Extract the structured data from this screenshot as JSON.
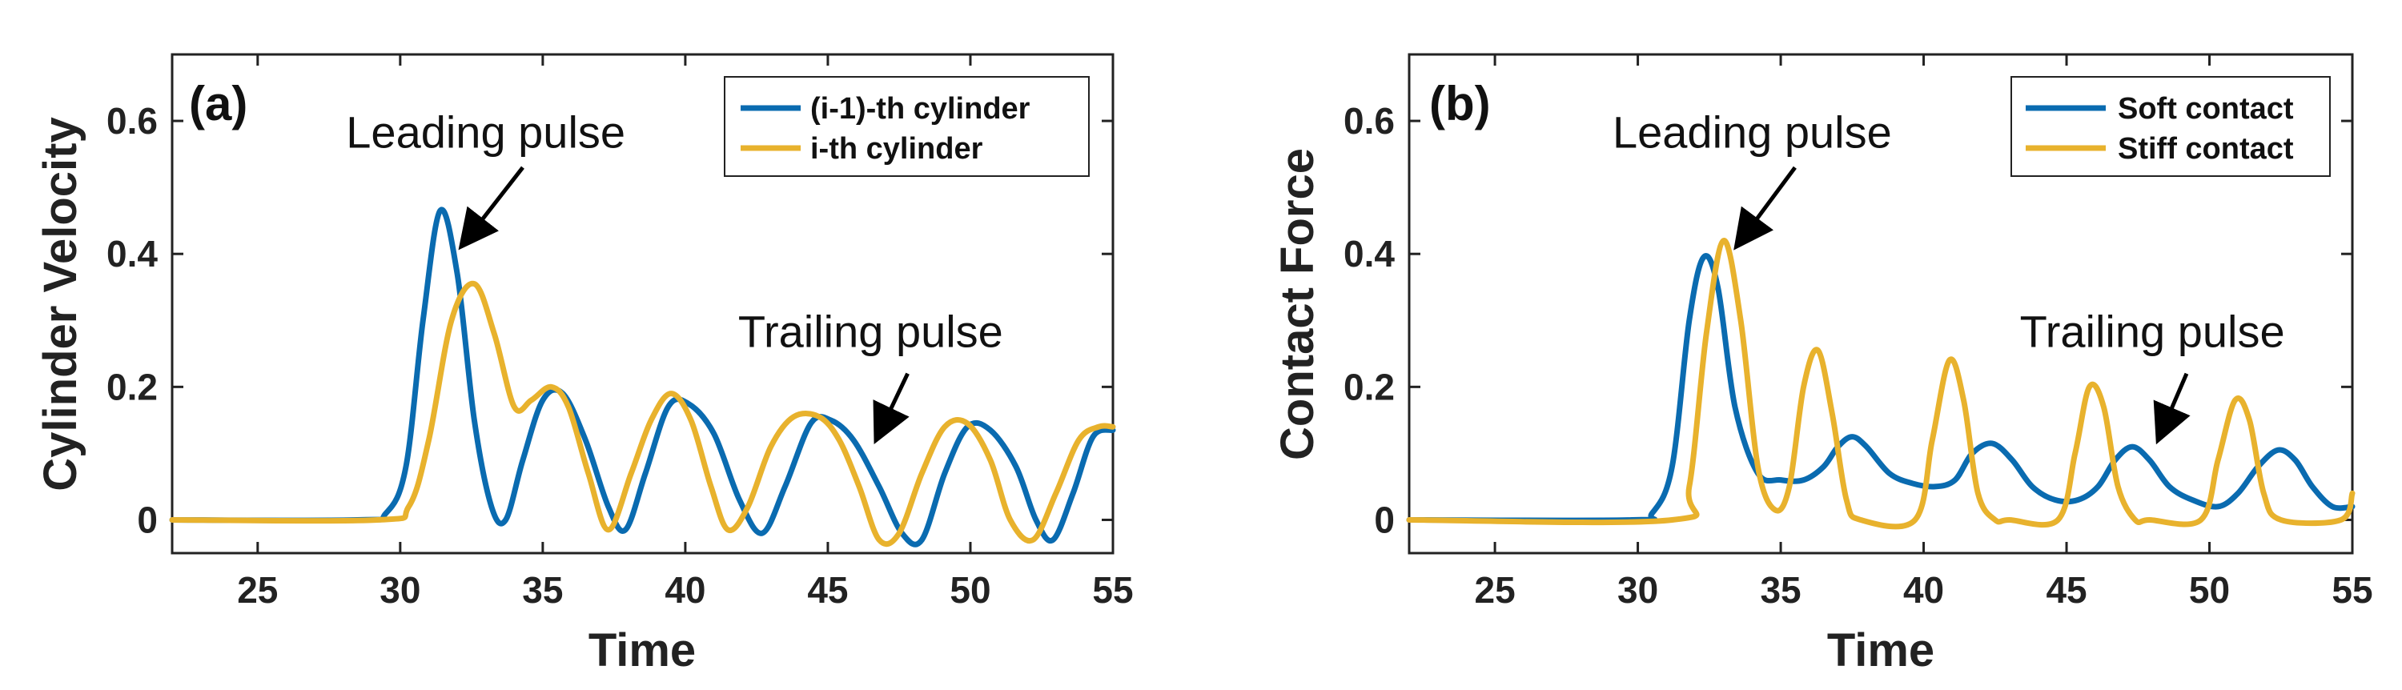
{
  "colors": {
    "blue": "#0a6bb0",
    "gold": "#e8b22d",
    "axis": "#222222"
  },
  "chart_data": [
    {
      "type": "line",
      "panel_label": "(a)",
      "xlabel": "Time",
      "ylabel": "Cylinder Velocity",
      "xlim": [
        22,
        55
      ],
      "ylim": [
        -0.05,
        0.7
      ],
      "xticks": [
        25,
        30,
        35,
        40,
        45,
        50,
        55
      ],
      "yticks": [
        0,
        0.2,
        0.4,
        0.6
      ],
      "ytick_labels": [
        "0",
        "0.2",
        "0.4",
        "0.6"
      ],
      "legend": "top-right",
      "series": [
        {
          "name": "(i-1)-th cylinder",
          "color": "#0a6bb0",
          "x": [
            22,
            28.5,
            29.5,
            30.2,
            30.8,
            31.4,
            32.0,
            32.6,
            33.2,
            33.7,
            34.3,
            35.0,
            35.7,
            36.5,
            37.3,
            37.9,
            38.6,
            39.4,
            40.1,
            41.0,
            41.9,
            42.7,
            43.5,
            44.4,
            45.1,
            45.9,
            46.8,
            47.6,
            48.3,
            49.1,
            49.9,
            50.7,
            51.6,
            52.3,
            52.9,
            53.6,
            54.3,
            55
          ],
          "y": [
            0,
            0,
            0.01,
            0.08,
            0.3,
            0.465,
            0.37,
            0.15,
            0.02,
            0.0,
            0.09,
            0.18,
            0.19,
            0.12,
            0.02,
            -0.015,
            0.07,
            0.17,
            0.175,
            0.13,
            0.03,
            -0.02,
            0.05,
            0.145,
            0.15,
            0.12,
            0.05,
            -0.02,
            -0.03,
            0.07,
            0.14,
            0.135,
            0.08,
            0.0,
            -0.03,
            0.04,
            0.125,
            0.135
          ]
        },
        {
          "name": "i-th cylinder",
          "color": "#e8b22d",
          "x": [
            22,
            29.2,
            30.3,
            31.0,
            31.8,
            32.6,
            33.3,
            34.0,
            34.6,
            35.3,
            35.9,
            36.6,
            37.3,
            38.1,
            38.8,
            39.5,
            40.2,
            40.9,
            41.5,
            42.2,
            43.0,
            43.8,
            44.7,
            45.4,
            46.1,
            46.8,
            47.5,
            48.3,
            49.1,
            49.9,
            50.7,
            51.4,
            52.2,
            53.0,
            53.8,
            54.5,
            55
          ],
          "y": [
            0,
            0,
            0.02,
            0.12,
            0.3,
            0.355,
            0.28,
            0.17,
            0.18,
            0.2,
            0.17,
            0.07,
            -0.015,
            0.07,
            0.15,
            0.19,
            0.15,
            0.05,
            -0.015,
            0.02,
            0.11,
            0.155,
            0.155,
            0.12,
            0.05,
            -0.03,
            -0.02,
            0.07,
            0.14,
            0.145,
            0.09,
            0.0,
            -0.03,
            0.04,
            0.12,
            0.14,
            0.14
          ]
        }
      ],
      "annotations": [
        {
          "text": "Leading pulse",
          "x": 33.0,
          "y": 0.56,
          "arrow_from": [
            34.3,
            0.53
          ],
          "arrow_to": [
            32.3,
            0.42
          ]
        },
        {
          "text": "Trailing pulse",
          "x": 46.5,
          "y": 0.26,
          "arrow_from": [
            47.8,
            0.22
          ],
          "arrow_to": [
            46.8,
            0.13
          ]
        }
      ]
    },
    {
      "type": "line",
      "panel_label": "(b)",
      "xlabel": "Time",
      "ylabel": "Contact Force",
      "xlim": [
        22,
        55
      ],
      "ylim": [
        -0.05,
        0.7
      ],
      "xticks": [
        25,
        30,
        35,
        40,
        45,
        50,
        55
      ],
      "yticks": [
        0,
        0.2,
        0.4,
        0.6
      ],
      "ytick_labels": [
        "0",
        "0.2",
        "0.4",
        "0.6"
      ],
      "legend": "top-right",
      "series": [
        {
          "name": "Soft contact",
          "color": "#0a6bb0",
          "x": [
            22,
            29.8,
            30.5,
            31.2,
            31.8,
            32.3,
            32.8,
            33.4,
            34.2,
            35.0,
            35.8,
            36.5,
            37.0,
            37.5,
            38.0,
            38.8,
            39.6,
            40.4,
            41.1,
            41.7,
            42.4,
            43.1,
            43.8,
            44.6,
            45.4,
            46.1,
            46.7,
            47.3,
            47.9,
            48.6,
            49.4,
            50.3,
            51.0,
            51.7,
            52.4,
            53.0,
            53.6,
            54.3,
            55
          ],
          "y": [
            0,
            0,
            0.01,
            0.08,
            0.3,
            0.395,
            0.35,
            0.17,
            0.07,
            0.06,
            0.06,
            0.08,
            0.11,
            0.125,
            0.11,
            0.07,
            0.055,
            0.05,
            0.06,
            0.1,
            0.115,
            0.09,
            0.05,
            0.03,
            0.03,
            0.05,
            0.09,
            0.11,
            0.09,
            0.05,
            0.03,
            0.02,
            0.04,
            0.08,
            0.105,
            0.09,
            0.05,
            0.02,
            0.02
          ]
        },
        {
          "name": "Stiff contact",
          "color": "#e8b22d",
          "x": [
            22,
            31.2,
            31.8,
            32.4,
            33.0,
            33.6,
            34.2,
            34.8,
            35.3,
            35.8,
            36.3,
            36.8,
            37.3,
            37.8,
            39.7,
            40.3,
            40.9,
            41.4,
            41.9,
            42.5,
            43.0,
            44.7,
            45.3,
            45.8,
            46.3,
            46.8,
            47.4,
            47.9,
            49.7,
            50.3,
            50.9,
            51.4,
            51.9,
            52.5,
            54.6,
            55
          ],
          "y": [
            0,
            0,
            0.05,
            0.28,
            0.42,
            0.3,
            0.08,
            0.015,
            0.05,
            0.2,
            0.255,
            0.16,
            0.03,
            0.0,
            0.0,
            0.12,
            0.24,
            0.18,
            0.04,
            0.0,
            0.0,
            0.0,
            0.1,
            0.2,
            0.17,
            0.05,
            0.0,
            0.0,
            0.0,
            0.09,
            0.18,
            0.15,
            0.04,
            0.0,
            0.0,
            0.04
          ]
        }
      ],
      "annotations": [
        {
          "text": "Leading pulse",
          "x": 34.0,
          "y": 0.56,
          "arrow_from": [
            35.5,
            0.53
          ],
          "arrow_to": [
            33.6,
            0.42
          ]
        },
        {
          "text": "Trailing pulse",
          "x": 48.0,
          "y": 0.26,
          "arrow_from": [
            49.2,
            0.22
          ],
          "arrow_to": [
            48.3,
            0.13
          ]
        }
      ]
    }
  ]
}
